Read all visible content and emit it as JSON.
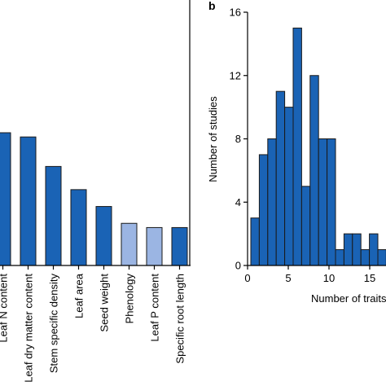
{
  "chart_data": [
    {
      "panel": "",
      "type": "bar",
      "categories": [
        "Leaf N content",
        "Leaf dry matter content",
        "Stem specific density",
        "Leaf area",
        "Seed weight",
        "Phenology",
        "Leaf P content",
        "Specific root length"
      ],
      "values": [
        63,
        61,
        47,
        36,
        28,
        20,
        18,
        18
      ],
      "colors": [
        "#1a63b5",
        "#1a63b5",
        "#1a63b5",
        "#1a63b5",
        "#1a63b5",
        "#9bb5e3",
        "#9bb5e3",
        "#1a63b5"
      ],
      "ylim": [
        0,
        126
      ],
      "xlabel": "",
      "ylabel": ""
    },
    {
      "panel": "b",
      "type": "bar",
      "x": [
        1,
        2,
        3,
        4,
        5,
        6,
        7,
        8,
        9,
        10,
        11,
        12,
        13,
        14,
        15,
        16,
        17
      ],
      "values": [
        3,
        7,
        8,
        11,
        10,
        15,
        5,
        12,
        8,
        8,
        1,
        2,
        2,
        1,
        2,
        1,
        1
      ],
      "color": "#1a63b5",
      "yticks": [
        0,
        4,
        8,
        12,
        16
      ],
      "ylim": [
        0,
        16
      ],
      "xticks": [
        0,
        5,
        10,
        15
      ],
      "xlim": [
        0,
        17
      ],
      "xlabel": "Number of traits",
      "ylabel": "Number of studies"
    }
  ]
}
